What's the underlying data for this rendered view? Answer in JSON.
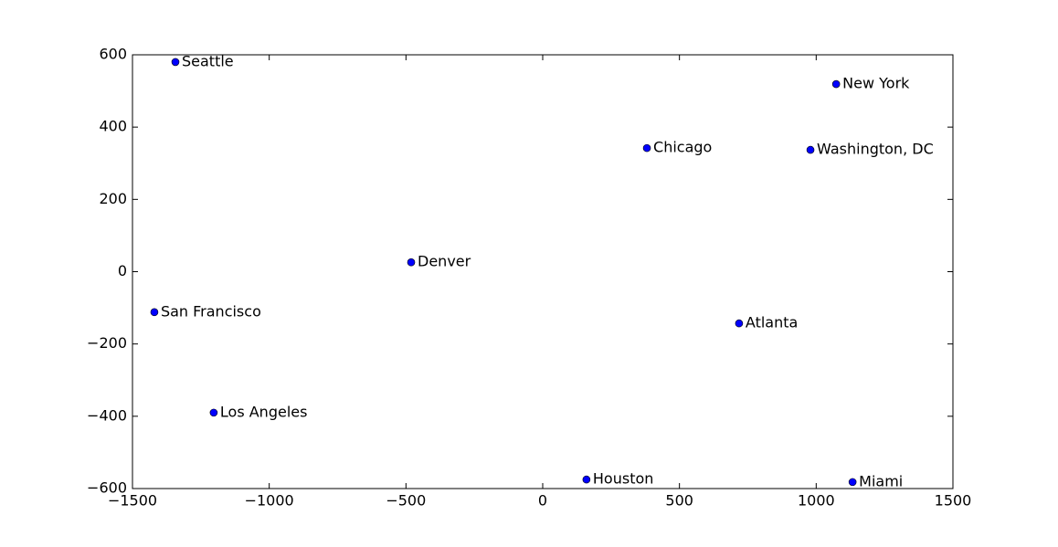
{
  "chart_data": {
    "type": "scatter",
    "labels": [
      "Seattle",
      "New York",
      "Chicago",
      "Washington, DC",
      "Denver",
      "San Francisco",
      "Atlanta",
      "Los Angeles",
      "Houston",
      "Miami"
    ],
    "x": [
      -1343,
      1073,
      381,
      979,
      -481,
      -1420,
      718,
      -1203,
      160,
      1133
    ],
    "y": [
      580,
      519,
      342,
      337,
      26,
      -112,
      -143,
      -390,
      -575,
      -582
    ],
    "color": "#0000ff",
    "xlim": [
      -1500,
      1500
    ],
    "xticks": [
      {
        "value": -1500,
        "label": "−1500"
      },
      {
        "value": -1000,
        "label": "−1000"
      },
      {
        "value": -500,
        "label": "−500"
      },
      0,
      500,
      1000,
      1500
    ],
    "ylim": [
      -600,
      600
    ],
    "yticks": [
      {
        "value": -600,
        "label": "−600"
      },
      {
        "value": -400,
        "label": "−400"
      },
      {
        "value": -200,
        "label": "−200"
      },
      0,
      200,
      400,
      600
    ],
    "grid": false
  }
}
